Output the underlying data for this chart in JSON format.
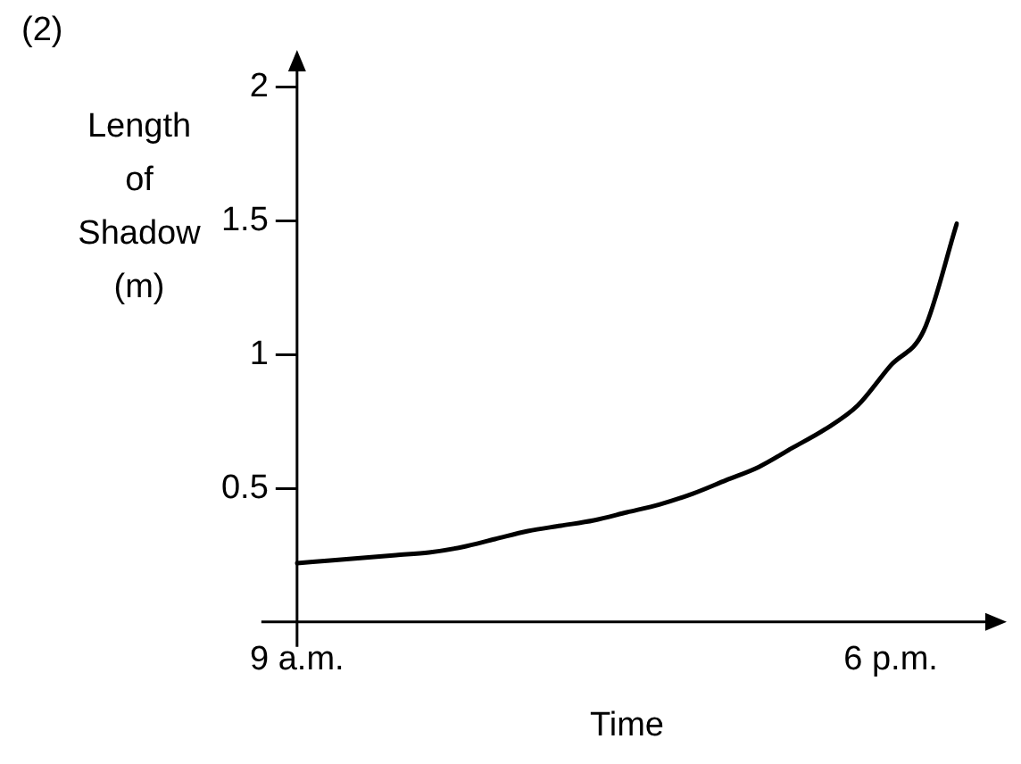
{
  "chart_data": {
    "type": "line",
    "xlabel": "Time",
    "ylabel": "Length of Shadow (m)",
    "annotations": [
      "(2)"
    ],
    "categories": [
      "9 a.m.",
      null,
      null,
      null,
      null,
      null,
      null,
      null,
      null,
      null,
      null,
      null,
      null,
      null,
      null,
      null,
      null,
      null,
      "6 p.m.",
      null,
      null
    ],
    "series": [
      {
        "color": "#000000",
        "values": [
          0.22,
          0.23,
          0.24,
          0.25,
          0.26,
          0.28,
          0.31,
          0.34,
          0.36,
          0.38,
          0.41,
          0.44,
          0.48,
          0.53,
          0.58,
          0.65,
          0.72,
          0.81,
          0.96,
          1.09,
          1.49
        ]
      }
    ],
    "ylim": [
      0,
      2.1
    ],
    "yticks": [
      {
        "value": 0.5,
        "label": "0.5"
      },
      {
        "value": 1,
        "label": "1"
      },
      {
        "value": 1.5,
        "label": "1.5"
      },
      {
        "value": 2,
        "label": "2"
      }
    ],
    "grid": false,
    "legend": false,
    "marker": "none",
    "line_style": "solid"
  }
}
